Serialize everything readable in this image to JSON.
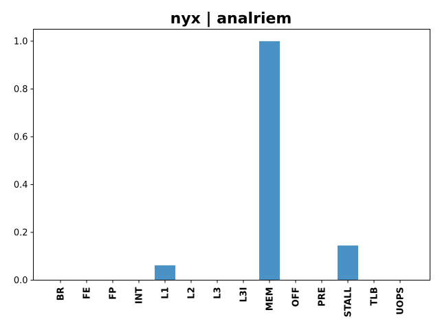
{
  "chart_data": {
    "type": "bar",
    "title": "nyx | analriem",
    "xlabel": "",
    "ylabel": "",
    "categories": [
      "BR",
      "FE",
      "FP",
      "INT",
      "L1",
      "L2",
      "L3",
      "L3I",
      "MEM",
      "OFF",
      "PRE",
      "STALL",
      "TLB",
      "UOPS"
    ],
    "values": [
      0,
      0,
      0,
      0,
      0.062,
      0,
      0,
      0,
      1.0,
      0,
      0,
      0.145,
      0,
      0
    ],
    "ylim": [
      0,
      1.05
    ],
    "yticks": [
      0.0,
      0.2,
      0.4,
      0.6,
      0.8,
      1.0
    ],
    "ytick_labels": [
      "0.0",
      "0.2",
      "0.4",
      "0.6",
      "0.8",
      "1.0"
    ],
    "bar_color": "#4a92c5",
    "grid": false,
    "legend": "none"
  }
}
